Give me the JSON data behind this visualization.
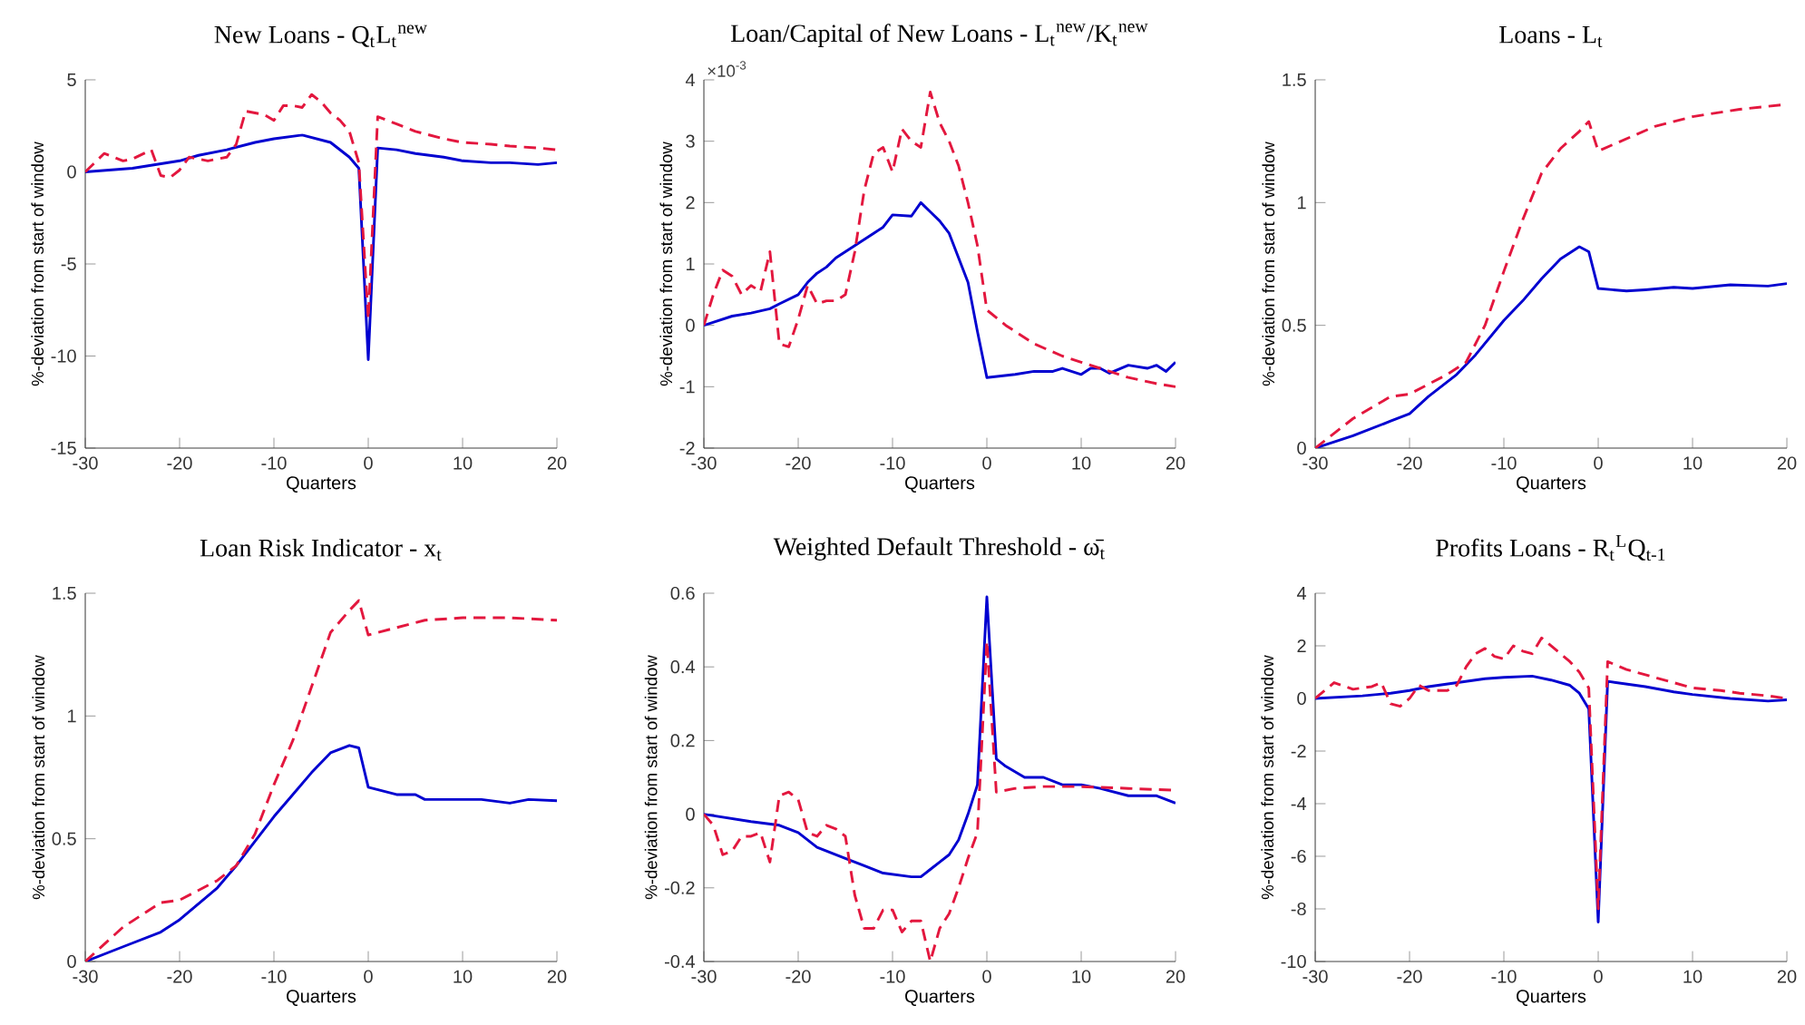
{
  "chart_data": [
    {
      "type": "line",
      "title": "New Loans - Q$_{t}$L$_{t}$$^{new}$",
      "xlabel": "Quarters",
      "ylabel": "%-deviation from start of window",
      "xlim": [
        -30,
        20
      ],
      "xticks": [
        -30,
        -20,
        -10,
        0,
        10,
        20
      ],
      "ylim": [
        -15,
        5
      ],
      "yticks": [
        -15,
        -10,
        -5,
        0,
        5
      ],
      "series": [
        {
          "color": "#0000d0",
          "line_style": "solid",
          "x": [
            -30,
            -25,
            -20,
            -18,
            -15,
            -12,
            -10,
            -7,
            -4,
            -2,
            -1,
            0,
            1,
            3,
            5,
            8,
            10,
            13,
            15,
            18,
            20
          ],
          "values": [
            0,
            0.2,
            0.6,
            0.9,
            1.2,
            1.6,
            1.8,
            2.0,
            1.6,
            0.8,
            0.2,
            -10.2,
            1.3,
            1.2,
            1.0,
            0.8,
            0.6,
            0.5,
            0.5,
            0.4,
            0.5
          ]
        },
        {
          "color": "#e3173e",
          "line_style": "dashed",
          "x": [
            -30,
            -28,
            -26,
            -25,
            -23,
            -22,
            -21,
            -20,
            -19,
            -17,
            -15,
            -14,
            -13,
            -11,
            -10,
            -9,
            -8,
            -7,
            -6,
            -5,
            -4,
            -3,
            -2,
            -1,
            0,
            1,
            3,
            5,
            8,
            10,
            13,
            15,
            18,
            20
          ],
          "values": [
            0,
            1.0,
            0.6,
            0.7,
            1.2,
            -0.2,
            -0.3,
            0.1,
            0.8,
            0.6,
            0.8,
            1.5,
            3.3,
            3.1,
            2.8,
            3.6,
            3.6,
            3.5,
            4.2,
            3.8,
            3.2,
            2.8,
            2.2,
            0.5,
            -8,
            3.0,
            2.6,
            2.2,
            1.8,
            1.6,
            1.5,
            1.4,
            1.3,
            1.2
          ]
        }
      ]
    },
    {
      "type": "line",
      "title": "Loan/Capital of New Loans - L$_{t}$$^{new}$/K$_{t}$$^{new}$",
      "xlabel": "Quarters",
      "ylabel": "%-deviation from start of window",
      "annotations": [
        "×10$^{-3}$"
      ],
      "xlim": [
        -30,
        20
      ],
      "xticks": [
        -30,
        -20,
        -10,
        0,
        10,
        20
      ],
      "ylim": [
        -2,
        4
      ],
      "yticks": [
        -2,
        -1,
        0,
        1,
        2,
        3,
        4
      ],
      "series": [
        {
          "color": "#0000d0",
          "line_style": "solid",
          "x": [
            -30,
            -27,
            -25,
            -23,
            -22,
            -20,
            -19,
            -18,
            -17,
            -16,
            -14,
            -12,
            -11,
            -10,
            -8,
            -7,
            -6,
            -5,
            -4,
            -3,
            -2,
            -1,
            0,
            3,
            5,
            7,
            8,
            10,
            11,
            12,
            13,
            15,
            17,
            18,
            19,
            20
          ],
          "values": [
            0,
            0.15,
            0.2,
            0.27,
            0.35,
            0.5,
            0.7,
            0.85,
            0.95,
            1.1,
            1.3,
            1.5,
            1.6,
            1.8,
            1.78,
            2.0,
            1.85,
            1.7,
            1.5,
            1.1,
            0.7,
            -0.1,
            -0.85,
            -0.8,
            -0.75,
            -0.75,
            -0.7,
            -0.8,
            -0.7,
            -0.7,
            -0.78,
            -0.65,
            -0.7,
            -0.65,
            -0.75,
            -0.6
          ]
        },
        {
          "color": "#e3173e",
          "line_style": "dashed",
          "x": [
            -30,
            -29,
            -28,
            -27,
            -26,
            -25,
            -24,
            -23,
            -22,
            -21,
            -20,
            -19,
            -18,
            -17,
            -16,
            -15,
            -14,
            -13,
            -12,
            -11,
            -10,
            -9,
            -8,
            -7,
            -6,
            -5,
            -4,
            -3,
            -2,
            -1,
            0,
            2,
            5,
            8,
            10,
            13,
            15,
            18,
            20
          ],
          "values": [
            0,
            0.5,
            0.9,
            0.8,
            0.5,
            0.65,
            0.55,
            1.2,
            -0.3,
            -0.35,
            0.1,
            0.65,
            0.35,
            0.4,
            0.4,
            0.5,
            1.2,
            2.2,
            2.8,
            2.9,
            2.5,
            3.2,
            3.0,
            2.9,
            3.8,
            3.3,
            3.0,
            2.6,
            2.0,
            1.3,
            0.25,
            0.0,
            -0.3,
            -0.5,
            -0.6,
            -0.75,
            -0.85,
            -0.95,
            -1.0
          ]
        }
      ]
    },
    {
      "type": "line",
      "title": "Loans - L$_{t}$",
      "xlabel": "Quarters",
      "ylabel": "%-deviation from start of window",
      "xlim": [
        -30,
        20
      ],
      "xticks": [
        -30,
        -20,
        -10,
        0,
        10,
        20
      ],
      "ylim": [
        0,
        1.5
      ],
      "yticks": [
        0,
        0.5,
        1,
        1.5
      ],
      "series": [
        {
          "color": "#0000d0",
          "line_style": "solid",
          "x": [
            -30,
            -26,
            -22,
            -20,
            -18,
            -15,
            -13,
            -10,
            -8,
            -6,
            -4,
            -2,
            -1,
            0,
            3,
            5,
            8,
            10,
            14,
            18,
            20
          ],
          "values": [
            0,
            0.05,
            0.11,
            0.14,
            0.21,
            0.3,
            0.38,
            0.52,
            0.6,
            0.69,
            0.77,
            0.82,
            0.8,
            0.65,
            0.64,
            0.645,
            0.655,
            0.65,
            0.665,
            0.66,
            0.67
          ]
        },
        {
          "color": "#e3173e",
          "line_style": "dashed",
          "x": [
            -30,
            -26,
            -22,
            -20,
            -16,
            -14,
            -12,
            -10,
            -8,
            -6,
            -4,
            -2,
            -1,
            0,
            3,
            6,
            10,
            15,
            20
          ],
          "values": [
            0,
            0.12,
            0.21,
            0.22,
            0.3,
            0.35,
            0.5,
            0.72,
            0.93,
            1.12,
            1.22,
            1.29,
            1.33,
            1.21,
            1.26,
            1.31,
            1.35,
            1.38,
            1.4
          ]
        }
      ]
    },
    {
      "type": "line",
      "title": "Loan Risk Indicator - x$_{t}$",
      "xlabel": "Quarters",
      "ylabel": "%-deviation from start of window",
      "xlim": [
        -30,
        20
      ],
      "xticks": [
        -30,
        -20,
        -10,
        0,
        10,
        20
      ],
      "ylim": [
        0,
        1.5
      ],
      "yticks": [
        0,
        0.5,
        1,
        1.5
      ],
      "series": [
        {
          "color": "#0000d0",
          "line_style": "solid",
          "x": [
            -30,
            -26,
            -22,
            -20,
            -16,
            -14,
            -12,
            -10,
            -8,
            -6,
            -4,
            -2,
            -1,
            0,
            3,
            5,
            6,
            10,
            12,
            15,
            17,
            20
          ],
          "values": [
            0,
            0.06,
            0.12,
            0.17,
            0.3,
            0.39,
            0.49,
            0.59,
            0.68,
            0.77,
            0.85,
            0.88,
            0.87,
            0.71,
            0.68,
            0.68,
            0.66,
            0.66,
            0.66,
            0.645,
            0.66,
            0.655
          ]
        },
        {
          "color": "#e3173e",
          "line_style": "dashed",
          "x": [
            -30,
            -26,
            -22,
            -20,
            -16,
            -14,
            -12,
            -10,
            -8,
            -6,
            -4,
            -2,
            -1,
            0,
            3,
            6,
            10,
            15,
            20
          ],
          "values": [
            0,
            0.14,
            0.24,
            0.25,
            0.33,
            0.39,
            0.52,
            0.72,
            0.9,
            1.12,
            1.34,
            1.43,
            1.47,
            1.33,
            1.36,
            1.39,
            1.4,
            1.4,
            1.39
          ]
        }
      ]
    },
    {
      "type": "line",
      "title": "Weighted Default Threshold - ω̄$_{t}$",
      "xlabel": "Quarters",
      "ylabel": "%-deviation from start of window",
      "xlim": [
        -30,
        20
      ],
      "xticks": [
        -30,
        -20,
        -10,
        0,
        10,
        20
      ],
      "ylim": [
        -0.4,
        0.6
      ],
      "yticks": [
        -0.4,
        -0.2,
        0,
        0.2,
        0.4,
        0.6
      ],
      "series": [
        {
          "color": "#0000d0",
          "line_style": "solid",
          "x": [
            -30,
            -25,
            -22,
            -20,
            -18,
            -15,
            -13,
            -11,
            -8,
            -7,
            -6,
            -5,
            -4,
            -3,
            -2,
            -1,
            0,
            1,
            2,
            4,
            6,
            8,
            10,
            12,
            15,
            18,
            20
          ],
          "values": [
            0,
            -0.02,
            -0.03,
            -0.05,
            -0.09,
            -0.12,
            -0.14,
            -0.16,
            -0.17,
            -0.17,
            -0.15,
            -0.13,
            -0.11,
            -0.07,
            0,
            0.08,
            0.59,
            0.15,
            0.13,
            0.1,
            0.1,
            0.08,
            0.08,
            0.07,
            0.05,
            0.05,
            0.03
          ]
        },
        {
          "color": "#e3173e",
          "line_style": "dashed",
          "x": [
            -30,
            -29,
            -28,
            -27,
            -26,
            -25,
            -24,
            -23,
            -22,
            -21,
            -20,
            -19,
            -18,
            -17,
            -16,
            -15,
            -14,
            -13,
            -12,
            -11,
            -10,
            -9,
            -8,
            -7,
            -6,
            -5,
            -4,
            -3,
            -2,
            -1,
            0,
            1,
            3,
            6,
            10,
            15,
            20
          ],
          "values": [
            0,
            -0.03,
            -0.11,
            -0.1,
            -0.06,
            -0.06,
            -0.05,
            -0.13,
            0.05,
            0.06,
            0.04,
            -0.05,
            -0.06,
            -0.03,
            -0.04,
            -0.06,
            -0.22,
            -0.31,
            -0.31,
            -0.26,
            -0.26,
            -0.32,
            -0.29,
            -0.29,
            -0.4,
            -0.31,
            -0.27,
            -0.2,
            -0.12,
            -0.05,
            0.47,
            0.06,
            0.07,
            0.075,
            0.075,
            0.07,
            0.065
          ]
        }
      ]
    },
    {
      "type": "line",
      "title": "Profits Loans - R$_{t}$$^{L}$Q$_{t-1}$",
      "xlabel": "Quarters",
      "ylabel": "%-deviation from start of window",
      "xlim": [
        -30,
        20
      ],
      "xticks": [
        -30,
        -20,
        -10,
        0,
        10,
        20
      ],
      "ylim": [
        -10,
        4
      ],
      "yticks": [
        -10,
        -8,
        -6,
        -4,
        -2,
        0,
        2,
        4
      ],
      "series": [
        {
          "color": "#0000d0",
          "line_style": "solid",
          "x": [
            -30,
            -25,
            -22,
            -20,
            -18,
            -15,
            -12,
            -10,
            -7,
            -5,
            -3,
            -2,
            -1,
            0,
            1,
            3,
            5,
            8,
            10,
            14,
            18,
            20
          ],
          "values": [
            0,
            0.1,
            0.2,
            0.3,
            0.45,
            0.6,
            0.75,
            0.8,
            0.85,
            0.7,
            0.5,
            0.2,
            -0.4,
            -8.5,
            0.65,
            0.55,
            0.45,
            0.25,
            0.15,
            0.0,
            -0.1,
            -0.05
          ]
        },
        {
          "color": "#e3173e",
          "line_style": "dashed",
          "x": [
            -30,
            -28,
            -26,
            -24,
            -23,
            -22,
            -21,
            -20,
            -19,
            -18,
            -16,
            -15,
            -14,
            -13,
            -12,
            -11,
            -10,
            -9,
            -8,
            -7,
            -6,
            -5,
            -4,
            -3,
            -2,
            -1,
            0,
            1,
            3,
            5,
            8,
            10,
            13,
            15,
            18,
            20
          ],
          "values": [
            0,
            0.6,
            0.35,
            0.45,
            0.6,
            -0.2,
            -0.3,
            0,
            0.5,
            0.3,
            0.3,
            0.5,
            1.2,
            1.7,
            1.9,
            1.6,
            1.5,
            2.0,
            1.8,
            1.7,
            2.3,
            2.0,
            1.7,
            1.4,
            1.0,
            0.4,
            -8.0,
            1.4,
            1.1,
            0.9,
            0.6,
            0.4,
            0.3,
            0.2,
            0.1,
            0.0
          ]
        }
      ]
    }
  ]
}
